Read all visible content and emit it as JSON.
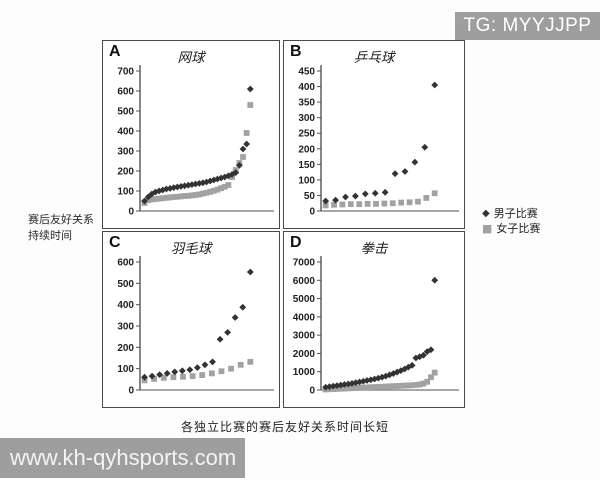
{
  "watermarks": {
    "top_right": "TG: MYYJJPP",
    "bottom_left": "www.kh-qyhsports.com"
  },
  "figure": {
    "y_axis_label_line1": "赛后友好关系",
    "y_axis_label_line2": "持续时间",
    "caption": "各独立比赛的赛后友好关系时间长短",
    "legend_position": "right",
    "legend": [
      {
        "marker": "diamond",
        "label": "男子比赛",
        "color": "#333333"
      },
      {
        "marker": "square",
        "label": "女子比赛",
        "color": "#a2a2a2"
      }
    ]
  },
  "chart_data": [
    {
      "panel": "A",
      "type": "scatter",
      "title": "网球",
      "xlabel": "",
      "ylabel": "",
      "ylim": [
        0,
        700
      ],
      "ytick_step": 100,
      "grid": false,
      "series": [
        {
          "name": "男子比赛",
          "marker": "diamond",
          "color": "#333333",
          "values": [
            50,
            70,
            85,
            95,
            100,
            105,
            110,
            113,
            117,
            120,
            123,
            126,
            129,
            132,
            135,
            138,
            141,
            145,
            150,
            155,
            160,
            165,
            170,
            176,
            183,
            192,
            228,
            310,
            335,
            610
          ]
        },
        {
          "name": "女子比赛",
          "marker": "square",
          "color": "#a2a2a2",
          "values": [
            40,
            54,
            58,
            60,
            62,
            64,
            66,
            68,
            70,
            71,
            73,
            75,
            76,
            78,
            80,
            83,
            87,
            91,
            96,
            101,
            107,
            114,
            121,
            130,
            170,
            205,
            240,
            270,
            390,
            530
          ]
        }
      ]
    },
    {
      "panel": "B",
      "type": "scatter",
      "title": "乒乓球",
      "xlabel": "",
      "ylabel": "",
      "ylim": [
        0,
        450
      ],
      "ytick_step": 50,
      "grid": false,
      "series": [
        {
          "name": "男子比赛",
          "marker": "diamond",
          "color": "#333333",
          "values": [
            32,
            35,
            45,
            48,
            55,
            57,
            60,
            120,
            127,
            157,
            205,
            405
          ]
        },
        {
          "name": "女子比赛",
          "marker": "square",
          "color": "#a2a2a2",
          "values": [
            18,
            20,
            21,
            22,
            22,
            23,
            23,
            24,
            25,
            27,
            28,
            30,
            42,
            57
          ]
        }
      ]
    },
    {
      "panel": "C",
      "type": "scatter",
      "title": "羽毛球",
      "xlabel": "",
      "ylabel": "",
      "ylim": [
        0,
        600
      ],
      "ytick_step": 100,
      "grid": false,
      "series": [
        {
          "name": "男子比赛",
          "marker": "diamond",
          "color": "#333333",
          "values": [
            60,
            65,
            72,
            78,
            85,
            90,
            95,
            105,
            118,
            132,
            238,
            270,
            340,
            388,
            553
          ]
        },
        {
          "name": "女子比赛",
          "marker": "square",
          "color": "#a2a2a2",
          "values": [
            45,
            52,
            57,
            60,
            62,
            65,
            70,
            78,
            88,
            100,
            118,
            132
          ]
        }
      ]
    },
    {
      "panel": "D",
      "type": "scatter",
      "title": "拳击",
      "xlabel": "",
      "ylabel": "",
      "ylim": [
        0,
        7000
      ],
      "ytick_step": 1000,
      "grid": false,
      "series": [
        {
          "name": "男子比赛",
          "marker": "diamond",
          "color": "#333333",
          "values": [
            150,
            180,
            210,
            240,
            270,
            300,
            330,
            360,
            400,
            440,
            480,
            520,
            560,
            600,
            650,
            700,
            760,
            830,
            900,
            980,
            1060,
            1150,
            1250,
            1350,
            1750,
            1820,
            1900,
            2100,
            2200,
            6000
          ]
        },
        {
          "name": "女子比赛",
          "marker": "square",
          "color": "#a2a2a2",
          "values": [
            30,
            40,
            50,
            60,
            70,
            80,
            90,
            100,
            110,
            120,
            130,
            140,
            150,
            160,
            170,
            180,
            190,
            200,
            210,
            220,
            230,
            240,
            250,
            260,
            280,
            300,
            350,
            450,
            700,
            950
          ]
        }
      ]
    }
  ]
}
